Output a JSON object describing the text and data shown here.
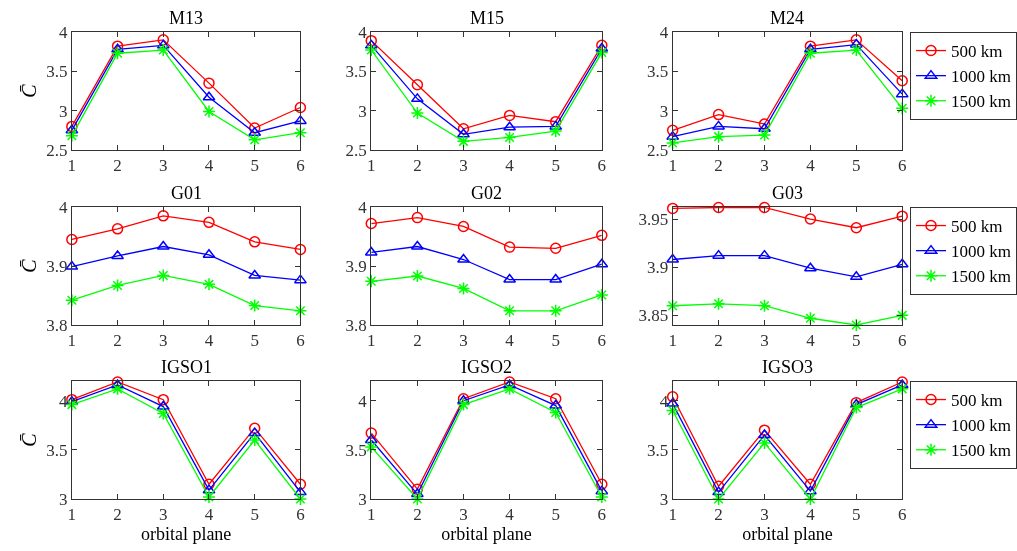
{
  "chart_data": [
    {
      "type": "line",
      "title": "M13",
      "ylabel": "C̄",
      "x": [
        1,
        2,
        3,
        4,
        5,
        6
      ],
      "xlim": [
        1,
        6
      ],
      "xticks": [
        1,
        2,
        3,
        4,
        5,
        6
      ],
      "ylim": [
        2.5,
        4
      ],
      "yticks": [
        2.5,
        3,
        3.5,
        4
      ],
      "series": [
        {
          "color": "#ff0000",
          "marker": "circle",
          "values": [
            2.8,
            3.82,
            3.9,
            3.35,
            2.78,
            3.04
          ]
        },
        {
          "color": "#0000ff",
          "marker": "triangle",
          "values": [
            2.75,
            3.78,
            3.83,
            3.17,
            2.72,
            2.87
          ]
        },
        {
          "color": "#00ff00",
          "marker": "cross",
          "values": [
            2.68,
            3.73,
            3.77,
            2.99,
            2.63,
            2.72
          ]
        }
      ]
    },
    {
      "type": "line",
      "title": "M15",
      "x": [
        1,
        2,
        3,
        4,
        5,
        6
      ],
      "xlim": [
        1,
        6
      ],
      "xticks": [
        1,
        2,
        3,
        4,
        5,
        6
      ],
      "ylim": [
        2.5,
        4
      ],
      "yticks": [
        2.5,
        3,
        3.5,
        4
      ],
      "series": [
        {
          "color": "#ff0000",
          "marker": "circle",
          "values": [
            3.89,
            3.33,
            2.77,
            2.94,
            2.86,
            3.83
          ]
        },
        {
          "color": "#0000ff",
          "marker": "triangle",
          "values": [
            3.83,
            3.15,
            2.7,
            2.79,
            2.8,
            3.79
          ]
        },
        {
          "color": "#00ff00",
          "marker": "cross",
          "values": [
            3.77,
            2.97,
            2.61,
            2.66,
            2.74,
            3.74
          ]
        }
      ]
    },
    {
      "type": "line",
      "title": "M24",
      "legend": "top right",
      "x": [
        1,
        2,
        3,
        4,
        5,
        6
      ],
      "xlim": [
        1,
        6
      ],
      "xticks": [
        1,
        2,
        3,
        4,
        5,
        6
      ],
      "ylim": [
        2.5,
        4
      ],
      "yticks": [
        2.5,
        3,
        3.5,
        4
      ],
      "series": [
        {
          "name": "500 km",
          "color": "#ff0000",
          "marker": "circle",
          "values": [
            2.75,
            2.95,
            2.83,
            3.82,
            3.9,
            3.38
          ]
        },
        {
          "name": "1000 km",
          "color": "#0000ff",
          "marker": "triangle",
          "values": [
            2.67,
            2.8,
            2.77,
            3.78,
            3.84,
            3.21
          ]
        },
        {
          "name": "1500 km",
          "color": "#00ff00",
          "marker": "cross",
          "values": [
            2.59,
            2.67,
            2.69,
            3.73,
            3.77,
            3.03
          ]
        }
      ]
    },
    {
      "type": "line",
      "title": "G01",
      "ylabel": "C̄",
      "x": [
        1,
        2,
        3,
        4,
        5,
        6
      ],
      "xlim": [
        1,
        6
      ],
      "xticks": [
        1,
        2,
        3,
        4,
        5,
        6
      ],
      "ylim": [
        3.8,
        4
      ],
      "yticks": [
        3.8,
        3.9,
        4
      ],
      "series": [
        {
          "color": "#ff0000",
          "marker": "circle",
          "values": [
            3.945,
            3.963,
            3.985,
            3.974,
            3.941,
            3.928
          ]
        },
        {
          "color": "#0000ff",
          "marker": "triangle",
          "values": [
            3.899,
            3.917,
            3.933,
            3.919,
            3.884,
            3.876
          ]
        },
        {
          "color": "#00ff00",
          "marker": "cross",
          "values": [
            3.842,
            3.867,
            3.884,
            3.869,
            3.833,
            3.824
          ]
        }
      ]
    },
    {
      "type": "line",
      "title": "G02",
      "x": [
        1,
        2,
        3,
        4,
        5,
        6
      ],
      "xlim": [
        1,
        6
      ],
      "xticks": [
        1,
        2,
        3,
        4,
        5,
        6
      ],
      "ylim": [
        3.8,
        4
      ],
      "yticks": [
        3.8,
        3.9,
        4
      ],
      "series": [
        {
          "color": "#ff0000",
          "marker": "circle",
          "values": [
            3.972,
            3.982,
            3.967,
            3.932,
            3.93,
            3.952
          ]
        },
        {
          "color": "#0000ff",
          "marker": "triangle",
          "values": [
            3.923,
            3.933,
            3.911,
            3.877,
            3.877,
            3.903
          ]
        },
        {
          "color": "#00ff00",
          "marker": "cross",
          "values": [
            3.874,
            3.883,
            3.862,
            3.824,
            3.824,
            3.851
          ]
        }
      ]
    },
    {
      "type": "line",
      "title": "G03",
      "legend": "top right",
      "x": [
        1,
        2,
        3,
        4,
        5,
        6
      ],
      "xlim": [
        1,
        6
      ],
      "xticks": [
        1,
        2,
        3,
        4,
        5,
        6
      ],
      "ylim": [
        3.84,
        3.9625
      ],
      "yticks": [
        3.85,
        3.9,
        3.95
      ],
      "series": [
        {
          "name": "500 km",
          "color": "#ff0000",
          "marker": "circle",
          "values": [
            3.961,
            3.962,
            3.962,
            3.95,
            3.941,
            3.953
          ]
        },
        {
          "name": "1000 km",
          "color": "#0000ff",
          "marker": "triangle",
          "values": [
            3.908,
            3.912,
            3.912,
            3.899,
            3.89,
            3.903
          ]
        },
        {
          "name": "1500 km",
          "color": "#00ff00",
          "marker": "cross",
          "values": [
            3.86,
            3.862,
            3.86,
            3.847,
            3.84,
            3.85
          ]
        }
      ]
    },
    {
      "type": "line",
      "title": "IGSO1",
      "ylabel": "C̄",
      "xlabel": "orbital plane",
      "x": [
        1,
        2,
        3,
        4,
        5,
        6
      ],
      "xlim": [
        1,
        6
      ],
      "xticks": [
        1,
        2,
        3,
        4,
        5,
        6
      ],
      "ylim": [
        3,
        4.2
      ],
      "yticks": [
        3,
        3.5,
        4
      ],
      "series": [
        {
          "color": "#ff0000",
          "marker": "circle",
          "values": [
            4.01,
            4.19,
            4.01,
            3.15,
            3.72,
            3.15
          ]
        },
        {
          "color": "#0000ff",
          "marker": "triangle",
          "values": [
            3.99,
            4.16,
            3.94,
            3.09,
            3.67,
            3.07
          ]
        },
        {
          "color": "#00ff00",
          "marker": "cross",
          "values": [
            3.96,
            4.12,
            3.87,
            3.02,
            3.6,
            3.0
          ]
        }
      ]
    },
    {
      "type": "line",
      "title": "IGSO2",
      "xlabel": "orbital plane",
      "x": [
        1,
        2,
        3,
        4,
        5,
        6
      ],
      "xlim": [
        1,
        6
      ],
      "xticks": [
        1,
        2,
        3,
        4,
        5,
        6
      ],
      "ylim": [
        3,
        4.2
      ],
      "yticks": [
        3,
        3.5,
        4
      ],
      "series": [
        {
          "color": "#ff0000",
          "marker": "circle",
          "values": [
            3.67,
            3.1,
            4.02,
            4.19,
            4.02,
            3.15
          ]
        },
        {
          "color": "#0000ff",
          "marker": "triangle",
          "values": [
            3.6,
            3.05,
            4.0,
            4.16,
            3.95,
            3.08
          ]
        },
        {
          "color": "#00ff00",
          "marker": "cross",
          "values": [
            3.53,
            3.0,
            3.96,
            4.12,
            3.88,
            3.02
          ]
        }
      ]
    },
    {
      "type": "line",
      "title": "IGSO3",
      "xlabel": "orbital plane",
      "legend": "top right",
      "x": [
        1,
        2,
        3,
        4,
        5,
        6
      ],
      "xlim": [
        1,
        6
      ],
      "xticks": [
        1,
        2,
        3,
        4,
        5,
        6
      ],
      "ylim": [
        3,
        4.2
      ],
      "yticks": [
        3,
        3.5,
        4
      ],
      "series": [
        {
          "name": "500 km",
          "color": "#ff0000",
          "marker": "circle",
          "values": [
            4.04,
            3.13,
            3.7,
            3.15,
            3.98,
            4.19
          ]
        },
        {
          "name": "1000 km",
          "color": "#0000ff",
          "marker": "triangle",
          "values": [
            3.97,
            3.07,
            3.65,
            3.08,
            3.96,
            4.16
          ]
        },
        {
          "name": "1500 km",
          "color": "#00ff00",
          "marker": "cross",
          "values": [
            3.9,
            3.0,
            3.57,
            3.0,
            3.93,
            4.12
          ]
        }
      ]
    }
  ]
}
